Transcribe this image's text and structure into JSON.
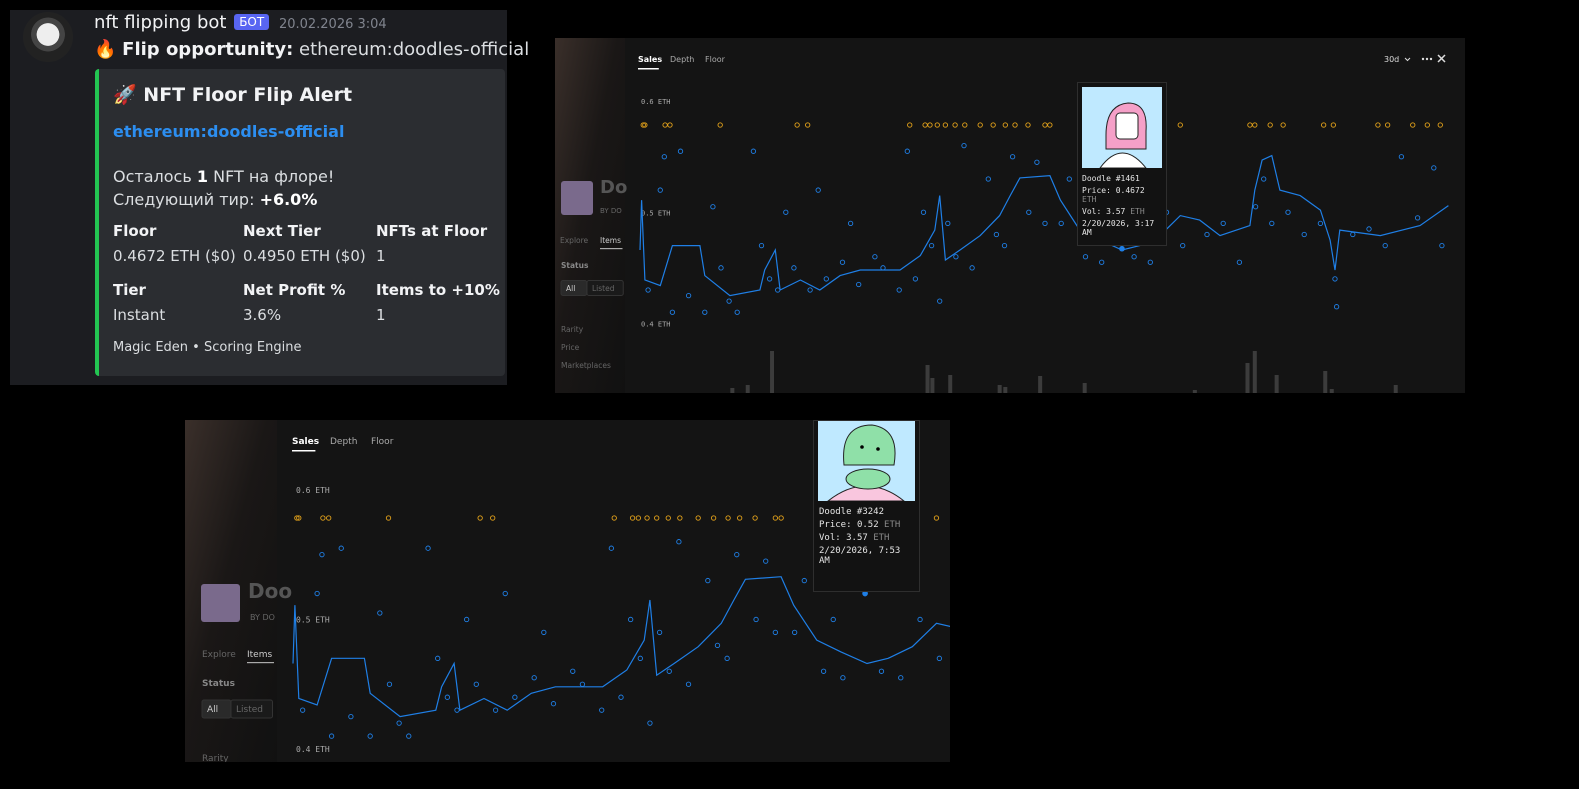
{
  "message": {
    "author": "nft flipping bot",
    "badge": "БОТ",
    "timestamp": "20.02.2026 3:04",
    "emoji": "🔥",
    "label": "Flip opportunity:",
    "slug": "ethereum:doodles-official",
    "embed": {
      "emoji": "🚀",
      "title": "NFT Floor Flip Alert",
      "link": "ethereum:doodles-official",
      "remaining": [
        "Осталось",
        "1",
        "NFT на флоре!"
      ],
      "next_tier": [
        "Следующий тир:",
        "+6.0%"
      ],
      "fields": [
        {
          "name": "Floor",
          "value": "0.4672 ETH ($0)"
        },
        {
          "name": "Next Tier",
          "value": "0.4950 ETH ($0)"
        },
        {
          "name": "NFTs at Floor",
          "value": "1"
        },
        {
          "name": "Tier",
          "value": "Instant"
        },
        {
          "name": "Net Profit %",
          "value": "3.6%"
        },
        {
          "name": "Items to +10%",
          "value": "1"
        }
      ],
      "footer": "Magic Eden • Scoring Engine"
    }
  },
  "sales": {
    "type": "scatter",
    "line": {
      "x": [
        0,
        0.2,
        0.6,
        2.5,
        4,
        7.4,
        8,
        11.1,
        14.8,
        15.4,
        16.7,
        17.3,
        19.8,
        22.2,
        24.7,
        27.2,
        32.1,
        34.6,
        36.4,
        37,
        37.7,
        39.5,
        42,
        44.4,
        45.7,
        46.9,
        50.6,
        51.9,
        54.3,
        56.8,
        59.5,
        61.7,
        64.2,
        66.7,
        69.1,
        71.6,
        75.3,
        75.9,
        76.8,
        78,
        79,
        81.5,
        84,
        85.2,
        85.8,
        86.4,
        91.4,
        96.3,
        99.8
      ],
      "y": [
        0.466,
        0.511,
        0.439,
        0.434,
        0.47,
        0.47,
        0.443,
        0.425,
        0.43,
        0.448,
        0.466,
        0.43,
        0.439,
        0.43,
        0.443,
        0.448,
        0.448,
        0.461,
        0.484,
        0.515,
        0.457,
        0.466,
        0.479,
        0.497,
        0.515,
        0.531,
        0.533,
        0.511,
        0.484,
        0.475,
        0.466,
        0.47,
        0.479,
        0.497,
        0.493,
        0.479,
        0.488,
        0.52,
        0.547,
        0.551,
        0.52,
        0.515,
        0.502,
        0.475,
        0.448,
        0.484,
        0.479,
        0.488,
        0.506
      ]
    },
    "points": {
      "x": [
        1,
        2.5,
        3,
        4,
        5,
        6,
        8,
        9,
        10,
        11,
        12,
        14,
        15,
        16,
        17,
        18,
        19,
        21,
        22,
        23,
        25,
        26,
        27,
        29,
        30,
        32,
        33,
        34,
        35,
        36,
        37,
        38,
        39,
        40,
        41,
        43,
        44,
        45,
        46,
        48,
        49,
        50,
        52,
        53,
        55,
        56,
        57,
        59.3,
        61,
        63,
        65,
        67,
        70,
        72,
        74,
        76,
        77,
        78,
        80,
        82,
        84,
        85.8,
        86,
        88,
        90,
        92,
        94,
        96,
        98,
        99
      ],
      "y": [
        0.43,
        0.52,
        0.55,
        0.41,
        0.555,
        0.425,
        0.41,
        0.505,
        0.45,
        0.42,
        0.41,
        0.555,
        0.47,
        0.44,
        0.43,
        0.5,
        0.45,
        0.43,
        0.52,
        0.44,
        0.455,
        0.49,
        0.435,
        0.46,
        0.45,
        0.43,
        0.555,
        0.44,
        0.5,
        0.47,
        0.42,
        0.49,
        0.46,
        0.56,
        0.45,
        0.53,
        0.48,
        0.47,
        0.55,
        0.5,
        0.545,
        0.49,
        0.49,
        0.53,
        0.46,
        0.5,
        0.455,
        0.52,
        0.46,
        0.455,
        0.5,
        0.47,
        0.48,
        0.49,
        0.455,
        0.505,
        0.53,
        0.49,
        0.5,
        0.48,
        0.49,
        0.44,
        0.415,
        0.48,
        0.485,
        0.47,
        0.55,
        0.495,
        0.54,
        0.47
      ]
    },
    "listings": [
      0.4,
      0.6,
      3.1,
      3.7,
      9.9,
      19.4,
      20.7,
      33.3,
      35.2,
      35.8,
      36.7,
      37.7,
      38.9,
      40.1,
      42,
      43.6,
      45.1,
      46.3,
      47.9,
      50,
      50.6,
      66.7,
      75.3,
      75.9,
      77.8,
      79.4,
      84.4,
      85.6,
      91.1,
      92.3,
      95.4,
      97.2,
      98.8
    ],
    "volume": {
      "x": [
        11.4,
        13.3,
        16.3,
        35.5,
        36.1,
        38.3,
        44.4,
        45.1,
        49.4,
        54.9,
        68.5,
        75,
        75.9,
        78.6,
        84.6,
        85.4,
        93.3
      ],
      "values": [
        1,
        1.6,
        8.4,
        5.6,
        3,
        3.6,
        1.6,
        1.2,
        3.4,
        2,
        0.6,
        6,
        8.4,
        3.6,
        4.4,
        0.8,
        1.6
      ]
    }
  },
  "panels": [
    {
      "tabs": [
        "Sales",
        "Depth",
        "Floor"
      ],
      "range": "30d",
      "sidebar": {
        "name": "Do",
        "by": "BY DO",
        "nav": [
          "Explore",
          "Items"
        ],
        "status": "Status",
        "filters": [
          "All",
          "Listed"
        ],
        "sections": [
          "Rarity",
          "Price",
          "Marketplaces"
        ]
      },
      "xlim": [
        0,
        100
      ],
      "ylim": [
        0.34,
        0.62
      ],
      "yticks": [
        {
          "value": 0.6,
          "label": "0.6 ETH"
        },
        {
          "value": 0.5,
          "label": "0.5 ETH"
        },
        {
          "value": 0.4,
          "label": "0.4 ETH"
        }
      ],
      "vlim": [
        0,
        10
      ],
      "tooltip": {
        "name": "Doodle #1461",
        "x": 59.5,
        "price_label": "Price:",
        "price": 0.4672,
        "unit": "ETH",
        "vol_label": "Vol:",
        "vol": 3.57,
        "vol_unit": "ETH",
        "date": "2/20/2026, 3:17 AM"
      }
    },
    {
      "tabs": [
        "Sales",
        "Depth",
        "Floor"
      ],
      "sidebar": {
        "name": "Doo",
        "by": "BY DO",
        "nav": [
          "Explore",
          "Items"
        ],
        "status": "Status",
        "filters": [
          "All",
          "Listed"
        ],
        "sections": [
          "Rarity"
        ]
      },
      "xlim": [
        0,
        68
      ],
      "ylim": [
        0.39,
        0.63
      ],
      "yticks": [
        {
          "value": 0.6,
          "label": "0.6 ETH"
        },
        {
          "value": 0.5,
          "label": "0.5 ETH"
        },
        {
          "value": 0.4,
          "label": "0.4 ETH"
        }
      ],
      "tooltip": {
        "name": "Doodle #3242",
        "x": 59.3,
        "price_label": "Price:",
        "price": 0.52,
        "unit": "ETH",
        "vol_label": "Vol:",
        "vol": 3.57,
        "vol_unit": "ETH",
        "date": "2/20/2026, 7:53 AM"
      }
    }
  ]
}
